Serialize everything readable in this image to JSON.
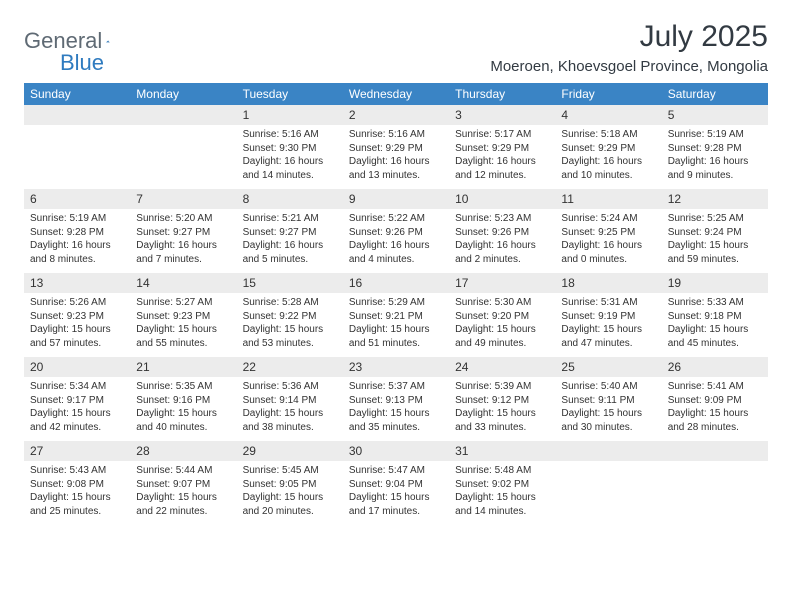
{
  "logo": {
    "part1": "General",
    "part2": "Blue"
  },
  "title": "July 2025",
  "location": "Moeroen, Khoevsgoel Province, Mongolia",
  "colors": {
    "header_bg": "#3a84c5",
    "header_text": "#ffffff",
    "daynum_bg": "#ececec",
    "text": "#333333",
    "logo_gray": "#5f6a74",
    "logo_blue": "#2f7bbf"
  },
  "weekdays": [
    "Sunday",
    "Monday",
    "Tuesday",
    "Wednesday",
    "Thursday",
    "Friday",
    "Saturday"
  ],
  "blanks_before": 2,
  "days": [
    {
      "n": 1,
      "sunrise": "5:16 AM",
      "sunset": "9:30 PM",
      "daylight": "16 hours and 14 minutes."
    },
    {
      "n": 2,
      "sunrise": "5:16 AM",
      "sunset": "9:29 PM",
      "daylight": "16 hours and 13 minutes."
    },
    {
      "n": 3,
      "sunrise": "5:17 AM",
      "sunset": "9:29 PM",
      "daylight": "16 hours and 12 minutes."
    },
    {
      "n": 4,
      "sunrise": "5:18 AM",
      "sunset": "9:29 PM",
      "daylight": "16 hours and 10 minutes."
    },
    {
      "n": 5,
      "sunrise": "5:19 AM",
      "sunset": "9:28 PM",
      "daylight": "16 hours and 9 minutes."
    },
    {
      "n": 6,
      "sunrise": "5:19 AM",
      "sunset": "9:28 PM",
      "daylight": "16 hours and 8 minutes."
    },
    {
      "n": 7,
      "sunrise": "5:20 AM",
      "sunset": "9:27 PM",
      "daylight": "16 hours and 7 minutes."
    },
    {
      "n": 8,
      "sunrise": "5:21 AM",
      "sunset": "9:27 PM",
      "daylight": "16 hours and 5 minutes."
    },
    {
      "n": 9,
      "sunrise": "5:22 AM",
      "sunset": "9:26 PM",
      "daylight": "16 hours and 4 minutes."
    },
    {
      "n": 10,
      "sunrise": "5:23 AM",
      "sunset": "9:26 PM",
      "daylight": "16 hours and 2 minutes."
    },
    {
      "n": 11,
      "sunrise": "5:24 AM",
      "sunset": "9:25 PM",
      "daylight": "16 hours and 0 minutes."
    },
    {
      "n": 12,
      "sunrise": "5:25 AM",
      "sunset": "9:24 PM",
      "daylight": "15 hours and 59 minutes."
    },
    {
      "n": 13,
      "sunrise": "5:26 AM",
      "sunset": "9:23 PM",
      "daylight": "15 hours and 57 minutes."
    },
    {
      "n": 14,
      "sunrise": "5:27 AM",
      "sunset": "9:23 PM",
      "daylight": "15 hours and 55 minutes."
    },
    {
      "n": 15,
      "sunrise": "5:28 AM",
      "sunset": "9:22 PM",
      "daylight": "15 hours and 53 minutes."
    },
    {
      "n": 16,
      "sunrise": "5:29 AM",
      "sunset": "9:21 PM",
      "daylight": "15 hours and 51 minutes."
    },
    {
      "n": 17,
      "sunrise": "5:30 AM",
      "sunset": "9:20 PM",
      "daylight": "15 hours and 49 minutes."
    },
    {
      "n": 18,
      "sunrise": "5:31 AM",
      "sunset": "9:19 PM",
      "daylight": "15 hours and 47 minutes."
    },
    {
      "n": 19,
      "sunrise": "5:33 AM",
      "sunset": "9:18 PM",
      "daylight": "15 hours and 45 minutes."
    },
    {
      "n": 20,
      "sunrise": "5:34 AM",
      "sunset": "9:17 PM",
      "daylight": "15 hours and 42 minutes."
    },
    {
      "n": 21,
      "sunrise": "5:35 AM",
      "sunset": "9:16 PM",
      "daylight": "15 hours and 40 minutes."
    },
    {
      "n": 22,
      "sunrise": "5:36 AM",
      "sunset": "9:14 PM",
      "daylight": "15 hours and 38 minutes."
    },
    {
      "n": 23,
      "sunrise": "5:37 AM",
      "sunset": "9:13 PM",
      "daylight": "15 hours and 35 minutes."
    },
    {
      "n": 24,
      "sunrise": "5:39 AM",
      "sunset": "9:12 PM",
      "daylight": "15 hours and 33 minutes."
    },
    {
      "n": 25,
      "sunrise": "5:40 AM",
      "sunset": "9:11 PM",
      "daylight": "15 hours and 30 minutes."
    },
    {
      "n": 26,
      "sunrise": "5:41 AM",
      "sunset": "9:09 PM",
      "daylight": "15 hours and 28 minutes."
    },
    {
      "n": 27,
      "sunrise": "5:43 AM",
      "sunset": "9:08 PM",
      "daylight": "15 hours and 25 minutes."
    },
    {
      "n": 28,
      "sunrise": "5:44 AM",
      "sunset": "9:07 PM",
      "daylight": "15 hours and 22 minutes."
    },
    {
      "n": 29,
      "sunrise": "5:45 AM",
      "sunset": "9:05 PM",
      "daylight": "15 hours and 20 minutes."
    },
    {
      "n": 30,
      "sunrise": "5:47 AM",
      "sunset": "9:04 PM",
      "daylight": "15 hours and 17 minutes."
    },
    {
      "n": 31,
      "sunrise": "5:48 AM",
      "sunset": "9:02 PM",
      "daylight": "15 hours and 14 minutes."
    }
  ],
  "labels": {
    "sunrise": "Sunrise:",
    "sunset": "Sunset:",
    "daylight": "Daylight:"
  }
}
